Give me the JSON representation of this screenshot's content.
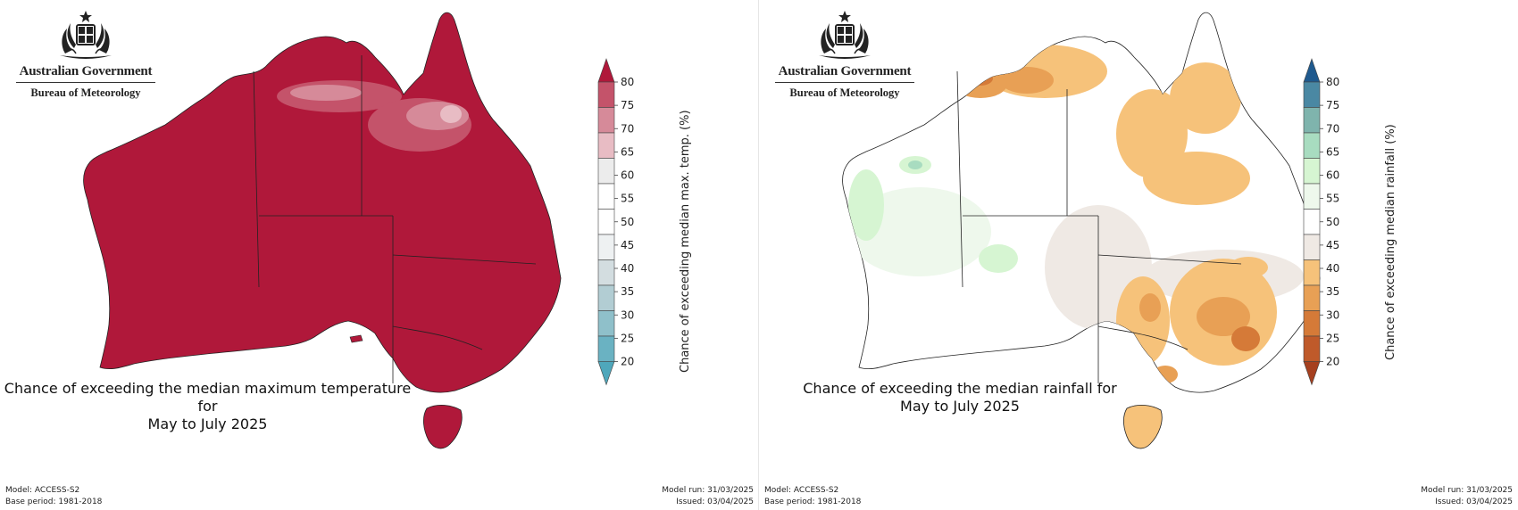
{
  "branding": {
    "government": "Australian Government",
    "agency": "Bureau of Meteorology"
  },
  "panels": [
    {
      "id": "temperature",
      "title_line1": "Chance of exceeding the median maximum temperature for",
      "title_line2": "May to July 2025",
      "footer_left": [
        "Model: ACCESS-S2",
        "Base period: 1981-2018"
      ],
      "footer_right": [
        "Model run: 31/03/2025",
        "Issued: 03/04/2025"
      ],
      "legend": {
        "title": "Chance of exceeding median max. temp. (%)",
        "ticks": [
          "80",
          "75",
          "70",
          "65",
          "60",
          "55",
          "50",
          "45",
          "40",
          "35",
          "30",
          "25",
          "20"
        ],
        "colors": [
          "#b0183a",
          "#c4536a",
          "#d68a99",
          "#e8bcc4",
          "#ececec",
          "#ffffff",
          "#ffffff",
          "#eef1f2",
          "#d3dde0",
          "#b2cdd3",
          "#8fc0ca",
          "#6ab2c2",
          "#4fa7bb"
        ]
      },
      "regions": {
        "main_color": "#b0183a",
        "anomaly_colors": [
          "#c4536a",
          "#d68a99",
          "#e8bcc4"
        ]
      }
    },
    {
      "id": "rainfall",
      "title_line1": "Chance of exceeding the median rainfall for",
      "title_line2": "May to July 2025",
      "footer_left": [
        "Model: ACCESS-S2",
        "Base period: 1981-2018"
      ],
      "footer_right": [
        "Model run: 31/03/2025",
        "Issued: 03/04/2025"
      ],
      "legend": {
        "title": "Chance of exceeding median rainfall (%)",
        "ticks": [
          "80",
          "75",
          "70",
          "65",
          "60",
          "55",
          "50",
          "45",
          "40",
          "35",
          "30",
          "25",
          "20"
        ],
        "colors": [
          "#1f5a8e",
          "#4a88a3",
          "#7fb4ad",
          "#a8dcc0",
          "#d6f5d2",
          "#eef8ec",
          "#ffffff",
          "#efe9e4",
          "#f6c27a",
          "#e8a055",
          "#d57a38",
          "#bf5a2a",
          "#a6401f"
        ]
      },
      "regions": {
        "main_color": "#ffffff",
        "anomaly_colors": [
          "#f6c27a",
          "#e8a055",
          "#d57a38",
          "#efe9e4",
          "#eef8ec",
          "#d6f5d2",
          "#a8dcc0"
        ]
      }
    }
  ]
}
